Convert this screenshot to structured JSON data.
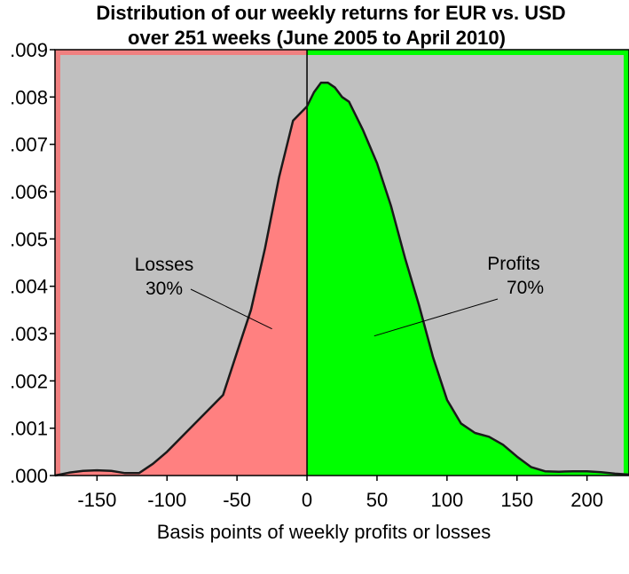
{
  "chart_data": {
    "type": "area",
    "title_line1": "Distribution of our weekly returns for EUR vs. USD",
    "title_line2": "over 251 weeks (June 2005 to April 2010)",
    "xlabel": "Basis points of weekly profits or losses",
    "ylabel": "",
    "xlim": [
      -180,
      230
    ],
    "ylim": [
      0,
      0.009
    ],
    "x_ticks": [
      -150,
      -100,
      -50,
      0,
      50,
      100,
      150,
      200
    ],
    "x_tick_labels": [
      "-150",
      "-100",
      "-50",
      "0",
      "50",
      "100",
      "150",
      "200"
    ],
    "y_ticks": [
      0,
      0.001,
      0.002,
      0.003,
      0.004,
      0.005,
      0.006,
      0.007,
      0.008,
      0.009
    ],
    "y_tick_labels": [
      ".000",
      ".001",
      ".002",
      ".003",
      ".004",
      ".005",
      ".006",
      ".007",
      ".008",
      ".009"
    ],
    "grid": false,
    "split_x": 0,
    "series": [
      {
        "x": [
          -180,
          -170,
          -160,
          -150,
          -140,
          -130,
          -120,
          -110,
          -100,
          -90,
          -80,
          -70,
          -60,
          -50,
          -40,
          -30,
          -20,
          -10,
          0,
          5,
          10,
          15,
          20,
          25,
          30,
          40,
          50,
          60,
          70,
          80,
          90,
          100,
          110,
          120,
          130,
          140,
          150,
          160,
          170,
          180,
          190,
          200,
          210,
          220,
          230
        ],
        "y": [
          0,
          6e-05,
          0.0001,
          0.00011,
          0.0001,
          5e-05,
          5e-05,
          0.00025,
          0.0005,
          0.0008,
          0.0011,
          0.0014,
          0.0017,
          0.0026,
          0.0035,
          0.0048,
          0.0063,
          0.0075,
          0.0078,
          0.0081,
          0.0083,
          0.0083,
          0.0082,
          0.008,
          0.0079,
          0.0073,
          0.0066,
          0.0057,
          0.0046,
          0.0036,
          0.0025,
          0.0016,
          0.0011,
          0.0009,
          0.00082,
          0.00065,
          0.0004,
          0.00018,
          9e-05,
          8e-05,
          9e-05,
          9e-05,
          7e-05,
          4e-05,
          2e-05
        ]
      }
    ],
    "annotations": [
      {
        "line1": "Losses",
        "line2": "30%",
        "target": [
          -25,
          0.0031
        ]
      },
      {
        "line1": "Profits",
        "line2": "70%",
        "target": [
          48,
          0.00295
        ]
      }
    ],
    "colors": {
      "loss_bg": "#f08080",
      "profit_bg": "#00ff00",
      "plot_bg": "#c0c0c0",
      "loss_fill": "#ff8080",
      "profit_fill": "#00ff00",
      "curve": "#1a1a1a"
    }
  }
}
